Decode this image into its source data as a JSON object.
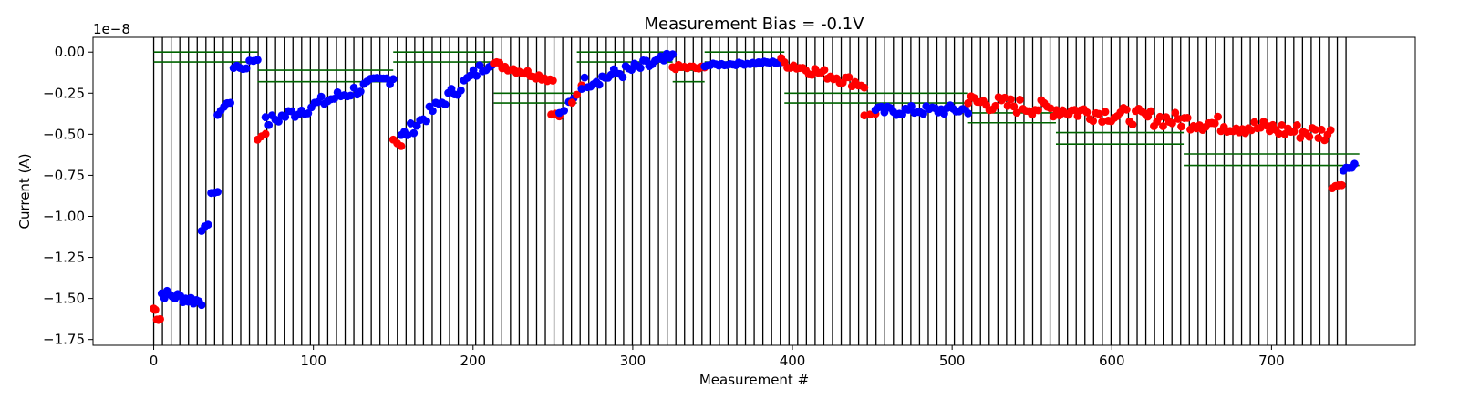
{
  "chart_data": {
    "type": "scatter",
    "title": "Measurement Bias = -0.1V",
    "xlabel": "Measurement #",
    "ylabel": "Current (A)",
    "offset_label": "1e−8",
    "xlim": [
      -38,
      790
    ],
    "ylim": [
      -1.785,
      0.09
    ],
    "xticks": [
      0,
      100,
      200,
      300,
      400,
      500,
      600,
      700
    ],
    "yticks": [
      0.0,
      -0.25,
      -0.5,
      -0.75,
      -1.0,
      -1.25,
      -1.5,
      -1.75
    ],
    "ytick_labels": [
      "0.00",
      "−0.25",
      "−0.50",
      "−0.75",
      "−1.00",
      "−1.25",
      "−1.50",
      "−1.75"
    ],
    "grid": false,
    "colors": {
      "series_a": "#ff0000",
      "series_b": "#0000ff",
      "vertical_lines": "#000000",
      "threshold_lines": "#006400"
    },
    "vertical_lines": {
      "start": 0,
      "end": 748,
      "spacing": 5.45,
      "color": "vertical_lines"
    },
    "threshold_segments": [
      {
        "x": [
          0,
          65
        ],
        "y": [
          -0.0,
          -0.06
        ]
      },
      {
        "x": [
          65,
          150
        ],
        "y": [
          -0.11,
          -0.18
        ]
      },
      {
        "x": [
          150,
          213
        ],
        "y": [
          -0.0,
          -0.06
        ]
      },
      {
        "x": [
          213,
          265
        ],
        "y": [
          -0.25,
          -0.31
        ]
      },
      {
        "x": [
          265,
          325
        ],
        "y": [
          -0.0,
          -0.06
        ]
      },
      {
        "x": [
          325,
          345
        ],
        "y": [
          -0.11,
          -0.18
        ]
      },
      {
        "x": [
          345,
          395
        ],
        "y": [
          -0.0,
          -0.06
        ]
      },
      {
        "x": [
          395,
          510
        ],
        "y": [
          -0.25,
          -0.31
        ]
      },
      {
        "x": [
          510,
          565
        ],
        "y": [
          -0.37,
          -0.43
        ]
      },
      {
        "x": [
          565,
          645
        ],
        "y": [
          -0.49,
          -0.56
        ]
      },
      {
        "x": [
          645,
          755
        ],
        "y": [
          -0.62,
          -0.69
        ]
      }
    ],
    "segments": [
      {
        "color": "series_a",
        "x0": 0,
        "x1": 4,
        "n": 5,
        "start": -1.56,
        "end": -1.62,
        "amp": 0.05
      },
      {
        "color": "series_b",
        "x0": 5,
        "x1": 30,
        "n": 16,
        "start": -1.47,
        "end": -1.52,
        "amp": 0.03
      },
      {
        "color": "series_b",
        "x0": 30,
        "x1": 34,
        "n": 3,
        "start": -1.08,
        "end": -1.06,
        "amp": 0.01
      },
      {
        "color": "series_b",
        "x0": 36,
        "x1": 40,
        "n": 3,
        "start": -0.85,
        "end": -0.86,
        "amp": 0.01
      },
      {
        "color": "series_b",
        "x0": 40,
        "x1": 48,
        "n": 5,
        "start": -0.37,
        "end": -0.3,
        "amp": 0.02
      },
      {
        "color": "series_b",
        "x0": 50,
        "x1": 58,
        "n": 5,
        "start": -0.09,
        "end": -0.1,
        "amp": 0.01
      },
      {
        "color": "series_b",
        "x0": 60,
        "x1": 65,
        "n": 3,
        "start": -0.05,
        "end": -0.05,
        "amp": 0.005
      },
      {
        "color": "series_a",
        "x0": 65,
        "x1": 70,
        "n": 3,
        "start": -0.53,
        "end": -0.49,
        "amp": 0.01
      },
      {
        "color": "series_b",
        "x0": 70,
        "x1": 150,
        "n": 40,
        "start": -0.43,
        "end": -0.15,
        "amp": 0.04
      },
      {
        "color": "series_a",
        "x0": 150,
        "x1": 155,
        "n": 3,
        "start": -0.53,
        "end": -0.57,
        "amp": 0.01
      },
      {
        "color": "series_b",
        "x0": 155,
        "x1": 212,
        "n": 30,
        "start": -0.52,
        "end": -0.04,
        "amp": 0.04
      },
      {
        "color": "series_a",
        "x0": 213,
        "x1": 250,
        "n": 22,
        "start": -0.07,
        "end": -0.17,
        "amp": 0.02
      },
      {
        "color": "series_a",
        "x0": 249,
        "x1": 254,
        "n": 3,
        "start": -0.37,
        "end": -0.39,
        "amp": 0.01
      },
      {
        "color": "series_b",
        "x0": 254,
        "x1": 263,
        "n": 4,
        "start": -0.38,
        "end": -0.29,
        "amp": 0.02
      },
      {
        "color": "series_a",
        "x0": 262,
        "x1": 268,
        "n": 3,
        "start": -0.31,
        "end": -0.2,
        "amp": 0.01
      },
      {
        "color": "series_b",
        "x0": 268,
        "x1": 325,
        "n": 32,
        "start": -0.19,
        "end": -0.04,
        "amp": 0.04
      },
      {
        "color": "series_a",
        "x0": 325,
        "x1": 345,
        "n": 12,
        "start": -0.09,
        "end": -0.1,
        "amp": 0.015
      },
      {
        "color": "series_b",
        "x0": 345,
        "x1": 393,
        "n": 28,
        "start": -0.08,
        "end": -0.06,
        "amp": 0.008
      },
      {
        "color": "series_a",
        "x0": 393,
        "x1": 445,
        "n": 28,
        "start": -0.06,
        "end": -0.2,
        "amp": 0.03
      },
      {
        "color": "series_a",
        "x0": 445,
        "x1": 452,
        "n": 3,
        "start": -0.39,
        "end": -0.37,
        "amp": 0.01
      },
      {
        "color": "series_b",
        "x0": 452,
        "x1": 510,
        "n": 32,
        "start": -0.36,
        "end": -0.35,
        "amp": 0.03
      },
      {
        "color": "series_a",
        "x0": 510,
        "x1": 737,
        "n": 120,
        "start": -0.3,
        "end": -0.5,
        "amp": 0.05
      },
      {
        "color": "series_a",
        "x0": 738,
        "x1": 744,
        "n": 4,
        "start": -0.82,
        "end": -0.8,
        "amp": 0.01
      },
      {
        "color": "series_b",
        "x0": 745,
        "x1": 752,
        "n": 5,
        "start": -0.72,
        "end": -0.68,
        "amp": 0.015
      }
    ]
  }
}
